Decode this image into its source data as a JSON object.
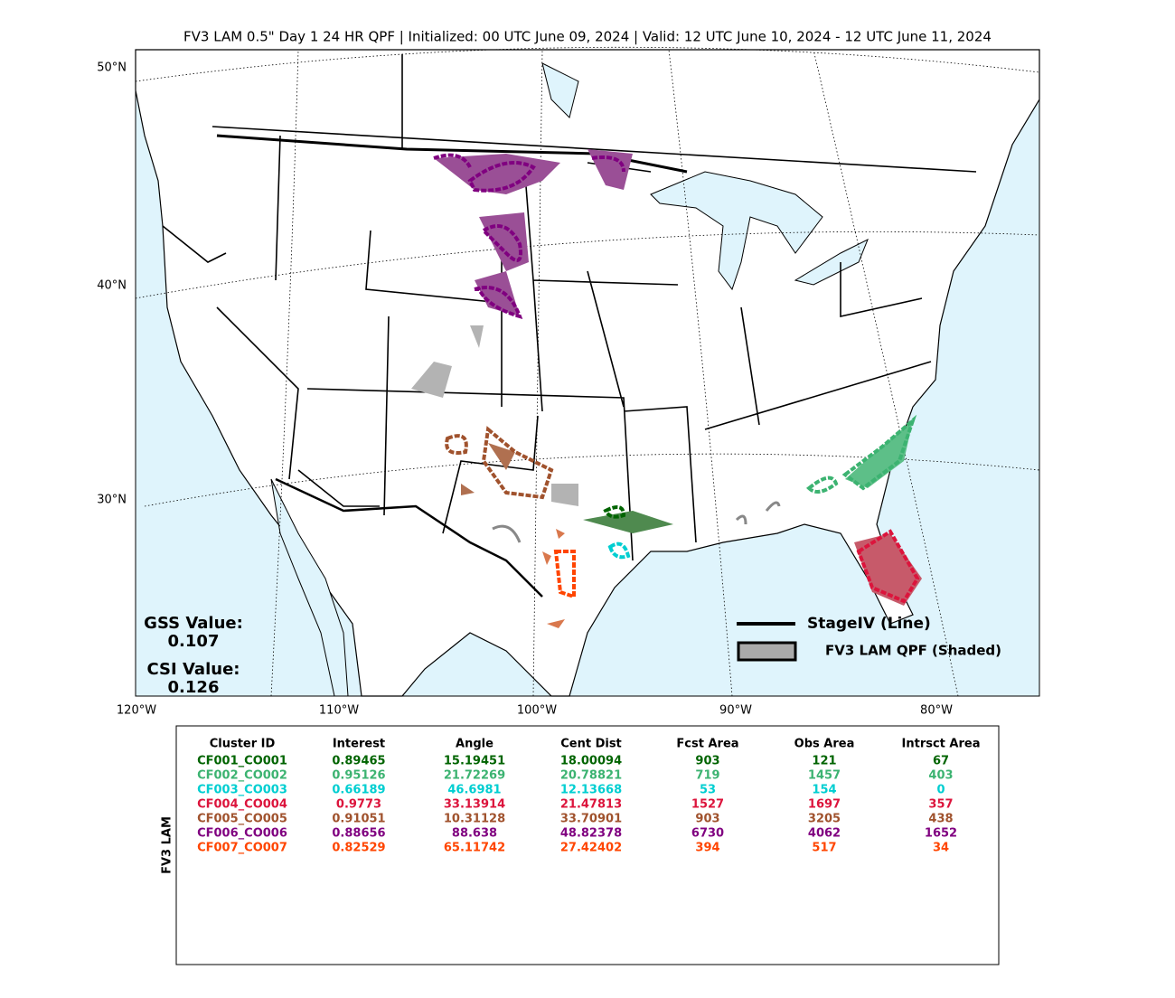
{
  "title": "FV3 LAM 0.5\" Day 1 24 HR QPF | Initialized: 00 UTC June 09, 2024 | Valid: 12 UTC June 10, 2024 - 12 UTC June 11, 2024",
  "map": {
    "lat_labels": [
      "50°N",
      "40°N",
      "30°N"
    ],
    "lon_labels": [
      "120°W",
      "110°W",
      "100°W",
      "90°W",
      "80°W"
    ],
    "stats": [
      {
        "label": "GSS Value:",
        "value": 0.107
      },
      {
        "label": "CSI Value:",
        "value": 0.126
      }
    ],
    "legend": [
      "StageIV (Line)",
      "FV3 LAM QPF (Shaded)"
    ]
  },
  "table": {
    "side_label": "FV3 LAM",
    "columns": [
      "Cluster ID",
      "Interest",
      "Angle",
      "Cent Dist",
      "Fcst Area",
      "Obs Area",
      "Intrsct Area"
    ],
    "rows": [
      {
        "color": "#006400",
        "cells": [
          "CF001_CO001",
          0.89465,
          15.19451,
          18.00094,
          903,
          121,
          67
        ]
      },
      {
        "color": "#3cb371",
        "cells": [
          "CF002_CO002",
          0.95126,
          21.72269,
          20.78821,
          719,
          1457,
          403
        ]
      },
      {
        "color": "#00ced1",
        "cells": [
          "CF003_CO003",
          0.66189,
          46.6981,
          12.13668,
          53,
          154,
          0
        ]
      },
      {
        "color": "#dc143c",
        "cells": [
          "CF004_CO004",
          0.9773,
          33.13914,
          21.47813,
          1527,
          1697,
          357
        ]
      },
      {
        "color": "#a0522d",
        "cells": [
          "CF005_CO005",
          0.91051,
          10.31128,
          33.70901,
          903,
          3205,
          438
        ]
      },
      {
        "color": "#800080",
        "cells": [
          "CF006_CO006",
          0.88656,
          88.638,
          48.82378,
          6730,
          4062,
          1652
        ]
      },
      {
        "color": "#ff4500",
        "cells": [
          "CF007_CO007",
          0.82529,
          65.11742,
          27.42402,
          394,
          517,
          34
        ]
      }
    ]
  }
}
